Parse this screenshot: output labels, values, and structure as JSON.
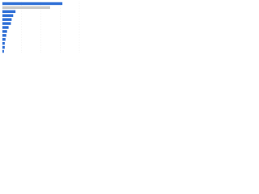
{
  "chart_data": {
    "type": "hbar",
    "categories": [
      null,
      null,
      null,
      null,
      null,
      null,
      null,
      null,
      null,
      null,
      null,
      null,
      null
    ],
    "values": [
      78,
      62,
      17,
      14,
      12,
      11,
      8,
      6,
      5,
      4,
      3,
      3,
      2
    ],
    "colors": [
      "#2f6fd6",
      "#c9c9c9",
      "#2f6fd6",
      "#2f6fd6",
      "#2f6fd6",
      "#2f6fd6",
      "#2f6fd6",
      "#2f6fd6",
      "#2f6fd6",
      "#2f6fd6",
      "#2f6fd6",
      "#2f6fd6",
      "#2f6fd6"
    ],
    "xlim": [
      0,
      100
    ],
    "xticks": [
      0,
      25,
      50,
      75,
      100
    ],
    "grid": true
  }
}
